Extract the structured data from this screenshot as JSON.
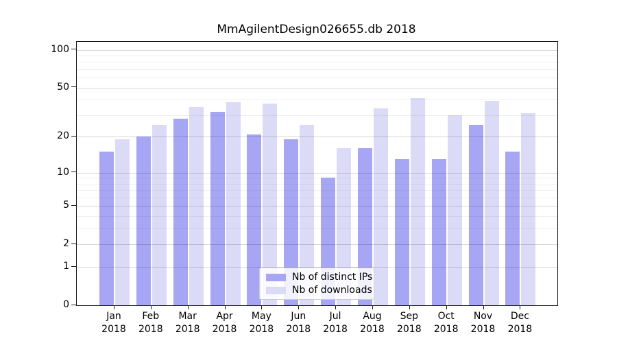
{
  "title": "MmAgilentDesign026655.db 2018",
  "chart_data": {
    "type": "bar",
    "title": "MmAgilentDesign026655.db 2018",
    "categories": [
      "Jan 2018",
      "Feb 2018",
      "Mar 2018",
      "Apr 2018",
      "May 2018",
      "Jun 2018",
      "Jul 2018",
      "Aug 2018",
      "Sep 2018",
      "Oct 2018",
      "Nov 2018",
      "Dec 2018"
    ],
    "x_tick_line1": [
      "Jan",
      "Feb",
      "Mar",
      "Apr",
      "May",
      "Jun",
      "Jul",
      "Aug",
      "Sep",
      "Oct",
      "Nov",
      "Dec"
    ],
    "x_tick_line2": "2018",
    "series": [
      {
        "name": "Nb of distinct IPs",
        "color": "#a6a6f5",
        "values": [
          15,
          20,
          28,
          32,
          21,
          19,
          9,
          16,
          13,
          13,
          25,
          15
        ]
      },
      {
        "name": "Nb of downloads",
        "color": "#dbdbf8",
        "values": [
          19,
          25,
          35,
          38,
          37,
          25,
          16,
          34,
          41,
          30,
          39,
          31
        ]
      }
    ],
    "yscale": "log1p",
    "ylim": [
      0,
      116
    ],
    "y_major_ticks": [
      0,
      1,
      2,
      5,
      10,
      20,
      50,
      100
    ],
    "y_minor_gridlines": [
      3,
      4,
      6,
      7,
      8,
      9,
      30,
      40,
      60,
      70,
      80,
      90
    ],
    "grid": true,
    "legend_position": "lower center",
    "xlabel": "",
    "ylabel": ""
  },
  "colors": {
    "background": "#ffffff",
    "axis": "#1a1a1a",
    "bar_dark": "#a6a6f5",
    "bar_light": "#dbdbf8",
    "grid_major": "#d6d6d6",
    "grid_minor": "#efefef"
  }
}
